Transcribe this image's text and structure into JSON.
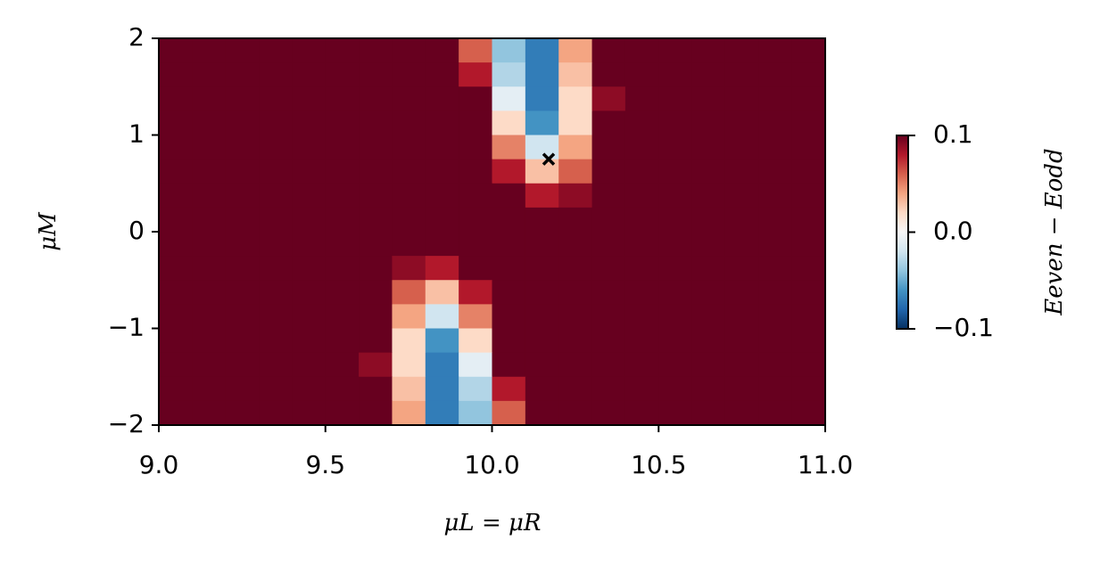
{
  "chart_data": {
    "type": "heatmap",
    "x_label": "μL = μR",
    "y_label": "μM",
    "colorbar_label": "Eeven − Eodd",
    "x": [
      9.05,
      9.15,
      9.25,
      9.35,
      9.45,
      9.55,
      9.65,
      9.75,
      9.85,
      9.95,
      10.05,
      10.15,
      10.25,
      10.35,
      10.45,
      10.55,
      10.65,
      10.75,
      10.85,
      10.95
    ],
    "y": [
      1.875,
      1.625,
      1.375,
      1.125,
      0.875,
      0.625,
      0.375,
      0.125,
      -0.125,
      -0.375,
      -0.625,
      -0.875,
      -1.125,
      -1.375,
      -1.625,
      -1.875
    ],
    "z": [
      [
        0.1,
        0.1,
        0.1,
        0.1,
        0.1,
        0.1,
        0.1,
        0.1,
        0.1,
        0.06,
        -0.04,
        -0.07,
        0.04,
        0.1,
        0.1,
        0.1,
        0.1,
        0.1,
        0.1,
        0.1
      ],
      [
        0.1,
        0.1,
        0.1,
        0.1,
        0.1,
        0.1,
        0.1,
        0.1,
        0.1,
        0.08,
        -0.03,
        -0.07,
        0.03,
        0.1,
        0.1,
        0.1,
        0.1,
        0.1,
        0.1,
        0.1
      ],
      [
        0.1,
        0.1,
        0.1,
        0.1,
        0.1,
        0.1,
        0.1,
        0.1,
        0.1,
        0.1,
        -0.01,
        -0.07,
        0.02,
        0.09,
        0.1,
        0.1,
        0.1,
        0.1,
        0.1,
        0.1
      ],
      [
        0.1,
        0.1,
        0.1,
        0.1,
        0.1,
        0.1,
        0.1,
        0.1,
        0.1,
        0.1,
        0.02,
        -0.06,
        0.02,
        0.1,
        0.1,
        0.1,
        0.1,
        0.1,
        0.1,
        0.1
      ],
      [
        0.1,
        0.1,
        0.1,
        0.1,
        0.1,
        0.1,
        0.1,
        0.1,
        0.1,
        0.1,
        0.05,
        -0.02,
        0.04,
        0.1,
        0.1,
        0.1,
        0.1,
        0.1,
        0.1,
        0.1
      ],
      [
        0.1,
        0.1,
        0.1,
        0.1,
        0.1,
        0.1,
        0.1,
        0.1,
        0.1,
        0.1,
        0.08,
        0.03,
        0.06,
        0.1,
        0.1,
        0.1,
        0.1,
        0.1,
        0.1,
        0.1
      ],
      [
        0.1,
        0.1,
        0.1,
        0.1,
        0.1,
        0.1,
        0.1,
        0.1,
        0.1,
        0.1,
        0.1,
        0.08,
        0.09,
        0.1,
        0.1,
        0.1,
        0.1,
        0.1,
        0.1,
        0.1
      ],
      [
        0.1,
        0.1,
        0.1,
        0.1,
        0.1,
        0.1,
        0.1,
        0.1,
        0.1,
        0.1,
        0.1,
        0.1,
        0.1,
        0.1,
        0.1,
        0.1,
        0.1,
        0.1,
        0.1,
        0.1
      ],
      [
        0.1,
        0.1,
        0.1,
        0.1,
        0.1,
        0.1,
        0.1,
        0.1,
        0.1,
        0.1,
        0.1,
        0.1,
        0.1,
        0.1,
        0.1,
        0.1,
        0.1,
        0.1,
        0.1,
        0.1
      ],
      [
        0.1,
        0.1,
        0.1,
        0.1,
        0.1,
        0.1,
        0.1,
        0.09,
        0.08,
        0.1,
        0.1,
        0.1,
        0.1,
        0.1,
        0.1,
        0.1,
        0.1,
        0.1,
        0.1,
        0.1
      ],
      [
        0.1,
        0.1,
        0.1,
        0.1,
        0.1,
        0.1,
        0.1,
        0.06,
        0.03,
        0.08,
        0.1,
        0.1,
        0.1,
        0.1,
        0.1,
        0.1,
        0.1,
        0.1,
        0.1,
        0.1
      ],
      [
        0.1,
        0.1,
        0.1,
        0.1,
        0.1,
        0.1,
        0.1,
        0.04,
        -0.02,
        0.05,
        0.1,
        0.1,
        0.1,
        0.1,
        0.1,
        0.1,
        0.1,
        0.1,
        0.1,
        0.1
      ],
      [
        0.1,
        0.1,
        0.1,
        0.1,
        0.1,
        0.1,
        0.1,
        0.02,
        -0.06,
        0.02,
        0.1,
        0.1,
        0.1,
        0.1,
        0.1,
        0.1,
        0.1,
        0.1,
        0.1,
        0.1
      ],
      [
        0.1,
        0.1,
        0.1,
        0.1,
        0.1,
        0.1,
        0.09,
        0.02,
        -0.07,
        -0.01,
        0.1,
        0.1,
        0.1,
        0.1,
        0.1,
        0.1,
        0.1,
        0.1,
        0.1,
        0.1
      ],
      [
        0.1,
        0.1,
        0.1,
        0.1,
        0.1,
        0.1,
        0.1,
        0.03,
        -0.07,
        -0.03,
        0.08,
        0.1,
        0.1,
        0.1,
        0.1,
        0.1,
        0.1,
        0.1,
        0.1,
        0.1
      ],
      [
        0.1,
        0.1,
        0.1,
        0.1,
        0.1,
        0.1,
        0.1,
        0.04,
        -0.07,
        -0.04,
        0.06,
        0.1,
        0.1,
        0.1,
        0.1,
        0.1,
        0.1,
        0.1,
        0.1,
        0.1
      ]
    ],
    "marker": {
      "x": 10.17,
      "y": 0.75
    },
    "xlim": [
      9,
      11
    ],
    "ylim": [
      -2,
      2
    ],
    "xticks": [
      {
        "value": 9,
        "label": "9.0"
      },
      9.5,
      {
        "value": 10,
        "label": "10.0"
      },
      10.5,
      {
        "value": 11,
        "label": "11.0"
      }
    ],
    "yticks": [
      {
        "value": -2,
        "label": "−2"
      },
      {
        "value": -1,
        "label": "−1"
      },
      0,
      1,
      2
    ],
    "clim": [
      -0.1,
      0.1
    ],
    "cticks": [
      {
        "value": -0.1,
        "label": "−0.1"
      },
      {
        "value": 0,
        "label": "0.0"
      },
      0.1
    ],
    "colormap": [
      "#053061",
      "#2166ac",
      "#4393c3",
      "#92c5de",
      "#d1e5f0",
      "#f7f7f7",
      "#fddbc7",
      "#f4a582",
      "#d6604d",
      "#b2182b",
      "#67001f"
    ]
  }
}
